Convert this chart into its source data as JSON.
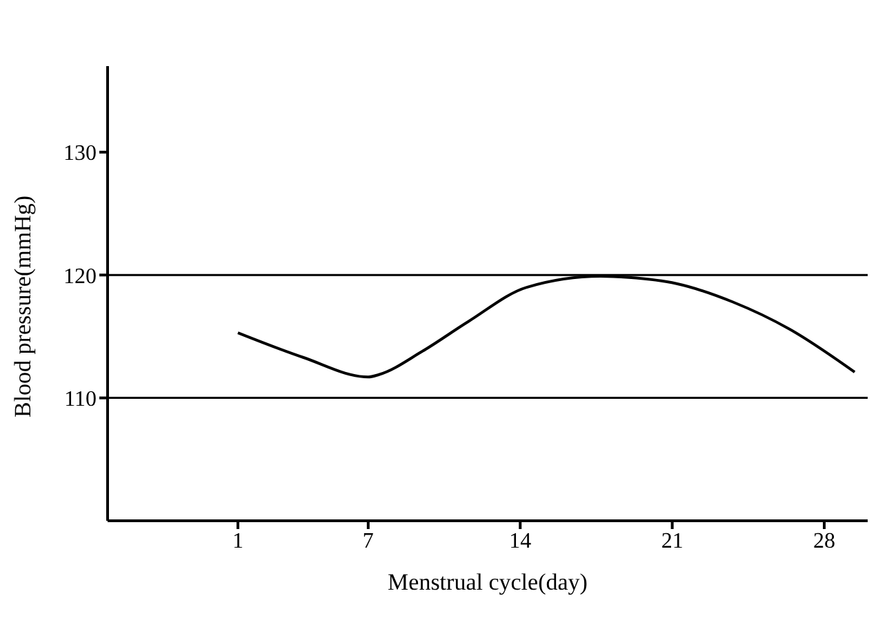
{
  "chart_data": {
    "type": "line",
    "xlabel": "Menstrual cycle(day)",
    "ylabel": "Blood pressure(mmHg)",
    "x": [
      1,
      4,
      7,
      7.5,
      9.5,
      11.6,
      14.3,
      17.7,
      19,
      21.2,
      23.8,
      26.4,
      29.4
    ],
    "series": [
      {
        "color": "#000000",
        "values": [
          115.3,
          113.3,
          111.7,
          111.9,
          113.8,
          116.2,
          119.0,
          119.9,
          119.8,
          119.3,
          117.8,
          115.6,
          112.1
        ]
      }
    ],
    "xlim": [
      -5,
      30
    ],
    "xticks": [
      1,
      7,
      14,
      21,
      28
    ],
    "ylim": [
      100,
      137
    ],
    "yticks": [
      110,
      120,
      130
    ],
    "ref_lines": [
      {
        "axis": "y",
        "value": 120,
        "color": "#000000"
      },
      {
        "axis": "y",
        "value": 110,
        "color": "#000000"
      }
    ],
    "marker": "none",
    "line_style": "solid"
  }
}
